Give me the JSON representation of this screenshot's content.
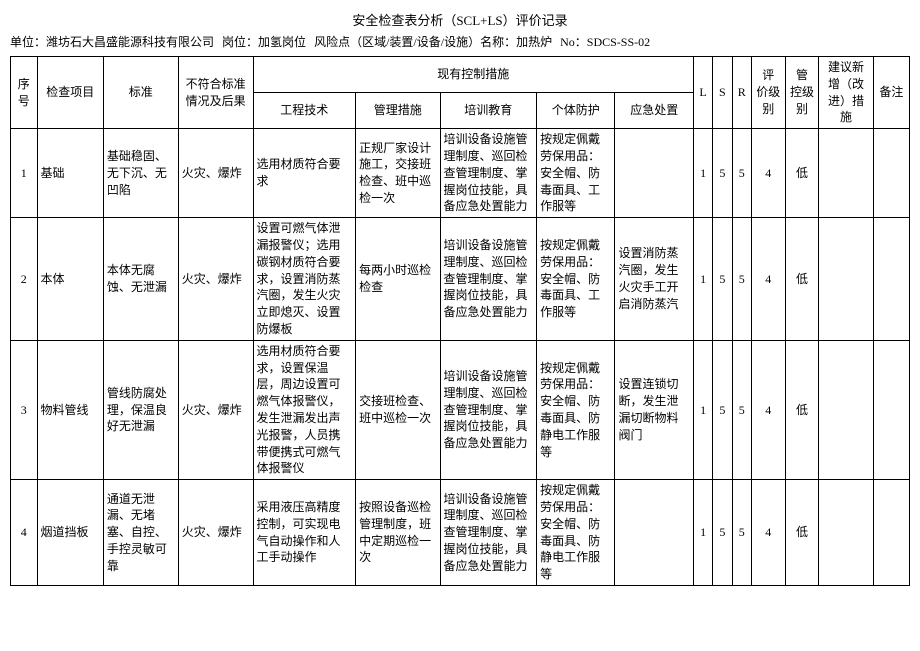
{
  "title": "安全检查表分析（SCL+LS）评价记录",
  "header": {
    "unit_label": "单位：",
    "unit": "潍坊石大昌盛能源科技有限公司",
    "post_label": "岗位：",
    "post": "加氢岗位",
    "risk_label": "风险点（区域/装置/设备/设施）名称：",
    "risk": "加热炉",
    "no_label": "No：",
    "no": "SDCS-SS-02"
  },
  "columns": {
    "seq": "序号",
    "item": "检查项目",
    "std": "标准",
    "cons": "不符合标准情况及后果",
    "ctrl_group": "现有控制措施",
    "eng": "工程技术",
    "mgmt": "管理措施",
    "train": "培训教育",
    "ppe": "个体防护",
    "emerg": "应急处置",
    "L": "L",
    "S": "S",
    "R": "R",
    "eval": "评 价级别",
    "mgmt_lvl": "管 控级别",
    "sugg": "建议新增（改进）措施",
    "remark": "备注"
  },
  "rows": [
    {
      "seq": "1",
      "item": "基础",
      "std": "基础稳固、无下沉、无凹陷",
      "cons": "火灾、爆炸",
      "eng": "选用材质符合要求",
      "mgmt": "正规厂家设计施工，交接班检查、班中巡检一次",
      "train": "培训设备设施管理制度、巡回检查管理制度、掌握岗位技能，具备应急处置能力",
      "ppe": "按规定佩戴劳保用品：安全帽、防毒面具、工作服等",
      "emerg": "",
      "L": "1",
      "S": "5",
      "R": "5",
      "eval": "4",
      "mgmt_lvl": "低",
      "sugg": "",
      "remark": ""
    },
    {
      "seq": "2",
      "item": "本体",
      "std": "本体无腐蚀、无泄漏",
      "cons": "火灾、爆炸",
      "eng": "设置可燃气体泄漏报警仪；选用碳钢材质符合要求，设置消防蒸汽圈，发生火灾立即熄灭、设置防爆板",
      "mgmt": "每两小时巡检检查",
      "train": "培训设备设施管理制度、巡回检查管理制度、掌握岗位技能，具备应急处置能力",
      "ppe": "按规定佩戴劳保用品：安全帽、防毒面具、工作服等",
      "emerg": "设置消防蒸汽圈，发生火灾手工开启消防蒸汽",
      "L": "1",
      "S": "5",
      "R": "5",
      "eval": "4",
      "mgmt_lvl": "低",
      "sugg": "",
      "remark": ""
    },
    {
      "seq": "3",
      "item": "物料管线",
      "std": "管线防腐处理，保温良好无泄漏",
      "cons": "火灾、爆炸",
      "eng": "选用材质符合要求，设置保温层，周边设置可燃气体报警仪，发生泄漏发出声光报警，人员携带便携式可燃气体报警仪",
      "mgmt": "交接班检查、班中巡检一次",
      "train": "培训设备设施管理制度、巡回检查管理制度、掌握岗位技能，具备应急处置能力",
      "ppe": "按规定佩戴劳保用品：安全帽、防毒面具、防静电工作服等",
      "emerg": "设置连锁切断，发生泄漏切断物料阀门",
      "L": "1",
      "S": "5",
      "R": "5",
      "eval": "4",
      "mgmt_lvl": "低",
      "sugg": "",
      "remark": ""
    },
    {
      "seq": "4",
      "item": "烟道挡板",
      "std": "通道无泄漏、无堵塞、自控、手控灵敏可靠",
      "cons": "火灾、爆炸",
      "eng": "采用液压高精度控制，可实现电气自动操作和人工手动操作",
      "mgmt": "按照设备巡检管理制度，班中定期巡检一次",
      "train": "培训设备设施管理制度、巡回检查管理制度、掌握岗位技能，具备应急处置能力",
      "ppe": "按规定佩戴劳保用品：安全帽、防毒面具、防静电工作服等",
      "emerg": "",
      "L": "1",
      "S": "5",
      "R": "5",
      "eval": "4",
      "mgmt_lvl": "低",
      "sugg": "",
      "remark": ""
    }
  ]
}
